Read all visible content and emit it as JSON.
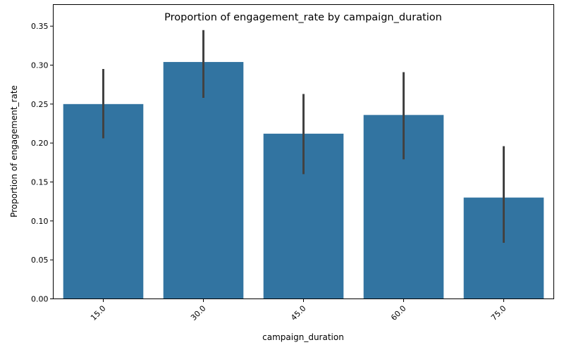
{
  "chart_data": {
    "type": "bar",
    "title": "Proportion of engagement_rate by campaign_duration",
    "xlabel": "campaign_duration",
    "ylabel": "Proportion of engagement_rate",
    "categories": [
      "15.0",
      "30.0",
      "45.0",
      "60.0",
      "75.0"
    ],
    "values": [
      0.25,
      0.304,
      0.212,
      0.236,
      0.13
    ],
    "error_low": [
      0.206,
      0.258,
      0.16,
      0.179,
      0.072
    ],
    "error_high": [
      0.295,
      0.345,
      0.263,
      0.291,
      0.196
    ],
    "ylim": [
      0,
      0.3777
    ],
    "yticks": [
      "0.00",
      "0.05",
      "0.10",
      "0.15",
      "0.20",
      "0.25",
      "0.30",
      "0.35"
    ],
    "ytick_values": [
      0,
      0.05,
      0.1,
      0.15,
      0.2,
      0.25,
      0.3,
      0.35
    ],
    "bar_color": "#3274a1",
    "errorbar_color": "#424242",
    "grid": false,
    "xtick_rotation": 45
  }
}
